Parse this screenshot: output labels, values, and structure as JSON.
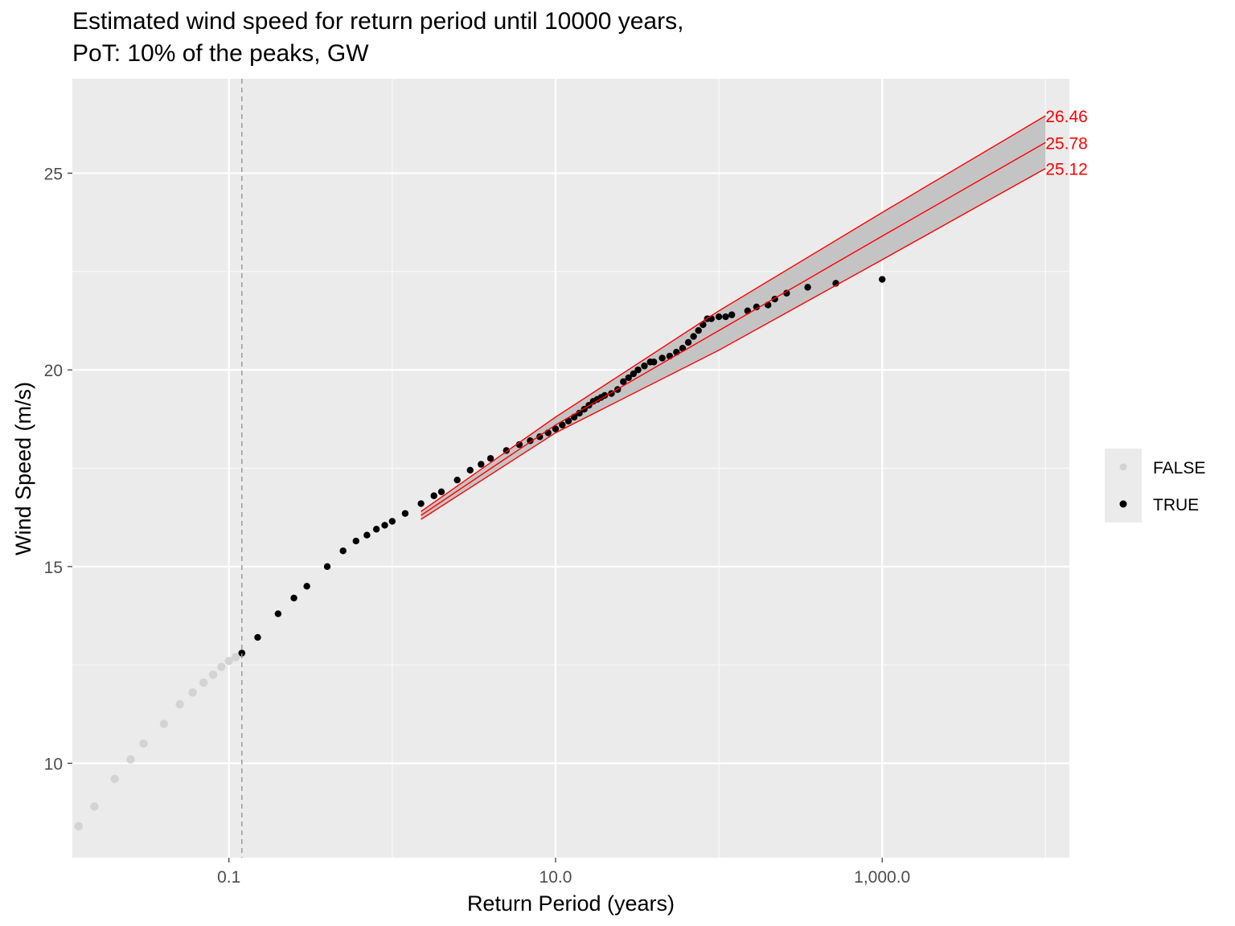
{
  "chart_data": {
    "type": "scatter",
    "title": "Estimated wind speed for return period until 10000 years,",
    "subtitle": "PoT: 10% of the peaks, GW",
    "xlabel": "Return Period (years)",
    "ylabel": "Wind Speed (m/s)",
    "x_scale": "log10",
    "xlim": [
      0.011,
      14000
    ],
    "ylim": [
      7.6,
      27.4
    ],
    "x_ticks": [
      {
        "value": 0.1,
        "label": "0.1"
      },
      {
        "value": 10,
        "label": "10.0"
      },
      {
        "value": 1000,
        "label": "1,000.0"
      }
    ],
    "y_ticks": [
      {
        "value": 10,
        "label": "10"
      },
      {
        "value": 15,
        "label": "15"
      },
      {
        "value": 20,
        "label": "20"
      },
      {
        "value": 25,
        "label": "25"
      }
    ],
    "threshold_x": 0.12,
    "grid": true,
    "legend": {
      "position": "right",
      "items": [
        {
          "label": "FALSE",
          "color": "#d3d3d3"
        },
        {
          "label": "TRUE",
          "color": "#000000"
        }
      ]
    },
    "fit_line": {
      "color": "#ff0000",
      "x": [
        1.5,
        10,
        100,
        1000,
        10000
      ],
      "fit": [
        16.3,
        18.6,
        21.0,
        23.4,
        25.78
      ],
      "lower": [
        16.2,
        18.4,
        20.5,
        22.8,
        25.12
      ],
      "upper": [
        16.4,
        18.8,
        21.5,
        24.0,
        26.46
      ]
    },
    "end_labels": [
      "26.46",
      "25.78",
      "25.12"
    ],
    "series": [
      {
        "name": "FALSE",
        "color": "#d3d3d3",
        "x": [
          0.012,
          0.015,
          0.02,
          0.025,
          0.03,
          0.04,
          0.05,
          0.06,
          0.07,
          0.08,
          0.09,
          0.1,
          0.11,
          0.12
        ],
        "y": [
          8.4,
          8.9,
          9.6,
          10.1,
          10.5,
          11.0,
          11.5,
          11.8,
          12.05,
          12.25,
          12.45,
          12.6,
          12.7,
          12.8
        ]
      },
      {
        "name": "TRUE",
        "color": "#000000",
        "x": [
          0.12,
          0.15,
          0.2,
          0.25,
          0.3,
          0.4,
          0.5,
          0.6,
          0.7,
          0.8,
          0.9,
          1.0,
          1.2,
          1.5,
          1.8,
          2.0,
          2.5,
          3.0,
          3.5,
          4.0,
          5.0,
          6.0,
          7.0,
          8.0,
          9.0,
          10.0,
          11,
          12,
          13,
          14,
          15,
          16,
          17,
          18,
          19,
          20,
          22,
          24,
          26,
          28,
          30,
          32,
          35,
          38,
          40,
          45,
          50,
          55,
          60,
          65,
          70,
          75,
          80,
          85,
          90,
          100,
          110,
          120,
          150,
          170,
          200,
          220,
          260,
          350,
          520,
          1000
        ],
        "y": [
          12.8,
          13.2,
          13.8,
          14.2,
          14.5,
          15.0,
          15.4,
          15.65,
          15.8,
          15.95,
          16.05,
          16.15,
          16.35,
          16.6,
          16.8,
          16.9,
          17.2,
          17.45,
          17.6,
          17.75,
          17.95,
          18.1,
          18.2,
          18.3,
          18.4,
          18.5,
          18.6,
          18.7,
          18.8,
          18.9,
          19.0,
          19.1,
          19.2,
          19.25,
          19.3,
          19.35,
          19.4,
          19.5,
          19.7,
          19.8,
          19.9,
          20.0,
          20.1,
          20.2,
          20.2,
          20.3,
          20.35,
          20.45,
          20.55,
          20.7,
          20.85,
          21.0,
          21.15,
          21.3,
          21.3,
          21.35,
          21.35,
          21.4,
          21.5,
          21.6,
          21.65,
          21.8,
          21.95,
          22.1,
          22.2,
          22.3
        ]
      }
    ]
  }
}
